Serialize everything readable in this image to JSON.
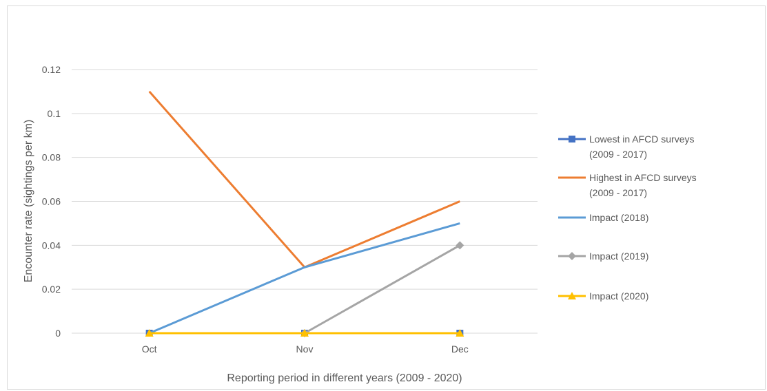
{
  "chart_data": {
    "type": "line",
    "title": "",
    "xlabel": "Reporting period in different years (2009 - 2020)",
    "ylabel": "Encounter rate (sightings per km)",
    "categories": [
      "Oct",
      "Nov",
      "Dec"
    ],
    "ylim": [
      0,
      0.12
    ],
    "yticks": [
      "0",
      "0.02",
      "0.04",
      "0.06",
      "0.08",
      "0.1",
      "0.12"
    ],
    "grid": true,
    "legend_position": "right",
    "series": [
      {
        "name_lines": [
          "Lowest in AFCD surveys",
          "(2009 - 2017)"
        ],
        "values": [
          0,
          0,
          0
        ],
        "color": "#4472C4",
        "marker": "square"
      },
      {
        "name_lines": [
          "Highest in AFCD surveys",
          "(2009 - 2017)"
        ],
        "values": [
          0.11,
          0.03,
          0.06
        ],
        "color": "#ED7D31",
        "marker": "none"
      },
      {
        "name_lines": [
          "Impact (2018)"
        ],
        "values": [
          0,
          0.03,
          0.05
        ],
        "color": "#5B9BD5",
        "marker": "none"
      },
      {
        "name_lines": [
          "Impact (2019)"
        ],
        "values": [
          null,
          0,
          0.04
        ],
        "color": "#A5A5A5",
        "marker": "diamond"
      },
      {
        "name_lines": [
          "Impact (2020)"
        ],
        "values": [
          0,
          0,
          0
        ],
        "color": "#FFC000",
        "marker": "triangle"
      }
    ]
  }
}
